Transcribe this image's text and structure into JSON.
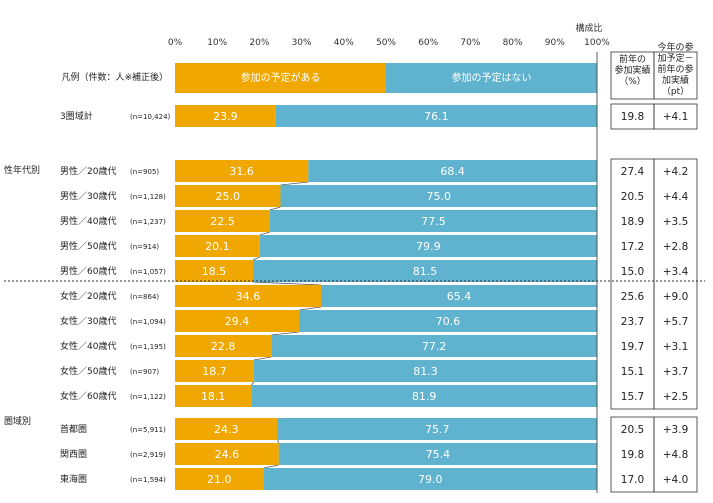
{
  "chart_data": {
    "type": "bar",
    "stacked": true,
    "orientation": "horizontal",
    "axis_title": "構成比",
    "xlim": [
      0,
      100
    ],
    "ticks": [
      "0%",
      "10%",
      "20%",
      "30%",
      "40%",
      "50%",
      "60%",
      "70%",
      "80%",
      "90%",
      "100%"
    ],
    "legend_caption": "凡例（件数：人※補正後）",
    "colors": {
      "attend": "#F0A800",
      "not_attend": "#5FB3CF"
    },
    "series": [
      {
        "name": "参加の予定がある",
        "color": "#F0A800"
      },
      {
        "name": "参加の予定はない",
        "color": "#5FB3CF"
      }
    ],
    "table_headers": [
      "前年の参加実績（%）",
      "今年の参加予定－前年の参加実績（pt）"
    ],
    "groups": [
      {
        "label": "",
        "rows": [
          {
            "category": "3圏域計",
            "n": "(n=10,424)",
            "attend": 23.9,
            "not_attend": 76.1,
            "prev": "19.8",
            "diff": "+4.1"
          }
        ]
      },
      {
        "label": "性年代別",
        "rows": [
          {
            "category": "男性／20歳代",
            "n": "(n=905)",
            "attend": 31.6,
            "not_attend": 68.4,
            "prev": "27.4",
            "diff": "+4.2"
          },
          {
            "category": "男性／30歳代",
            "n": "(n=1,128)",
            "attend": 25.0,
            "not_attend": 75.0,
            "prev": "20.5",
            "diff": "+4.4"
          },
          {
            "category": "男性／40歳代",
            "n": "(n=1,237)",
            "attend": 22.5,
            "not_attend": 77.5,
            "prev": "18.9",
            "diff": "+3.5"
          },
          {
            "category": "男性／50歳代",
            "n": "(n=914)",
            "attend": 20.1,
            "not_attend": 79.9,
            "prev": "17.2",
            "diff": "+2.8"
          },
          {
            "category": "男性／60歳代",
            "n": "(n=1,057)",
            "attend": 18.5,
            "not_attend": 81.5,
            "prev": "15.0",
            "diff": "+3.4"
          },
          {
            "category": "女性／20歳代",
            "n": "(n=864)",
            "attend": 34.6,
            "not_attend": 65.4,
            "prev": "25.6",
            "diff": "+9.0"
          },
          {
            "category": "女性／30歳代",
            "n": "(n=1,094)",
            "attend": 29.4,
            "not_attend": 70.6,
            "prev": "23.7",
            "diff": "+5.7"
          },
          {
            "category": "女性／40歳代",
            "n": "(n=1,195)",
            "attend": 22.8,
            "not_attend": 77.2,
            "prev": "19.7",
            "diff": "+3.1"
          },
          {
            "category": "女性／50歳代",
            "n": "(n=907)",
            "attend": 18.7,
            "not_attend": 81.3,
            "prev": "15.1",
            "diff": "+3.7"
          },
          {
            "category": "女性／60歳代",
            "n": "(n=1,122)",
            "attend": 18.1,
            "not_attend": 81.9,
            "prev": "15.7",
            "diff": "+2.5"
          }
        ]
      },
      {
        "label": "圏域別",
        "rows": [
          {
            "category": "首都圏",
            "n": "(n=5,911)",
            "attend": 24.3,
            "not_attend": 75.7,
            "prev": "20.5",
            "diff": "+3.9"
          },
          {
            "category": "関西圏",
            "n": "(n=2,919)",
            "attend": 24.6,
            "not_attend": 75.4,
            "prev": "19.8",
            "diff": "+4.8"
          },
          {
            "category": "東海圏",
            "n": "(n=1,594)",
            "attend": 21.0,
            "not_attend": 79.0,
            "prev": "17.0",
            "diff": "+4.0"
          }
        ]
      }
    ]
  }
}
